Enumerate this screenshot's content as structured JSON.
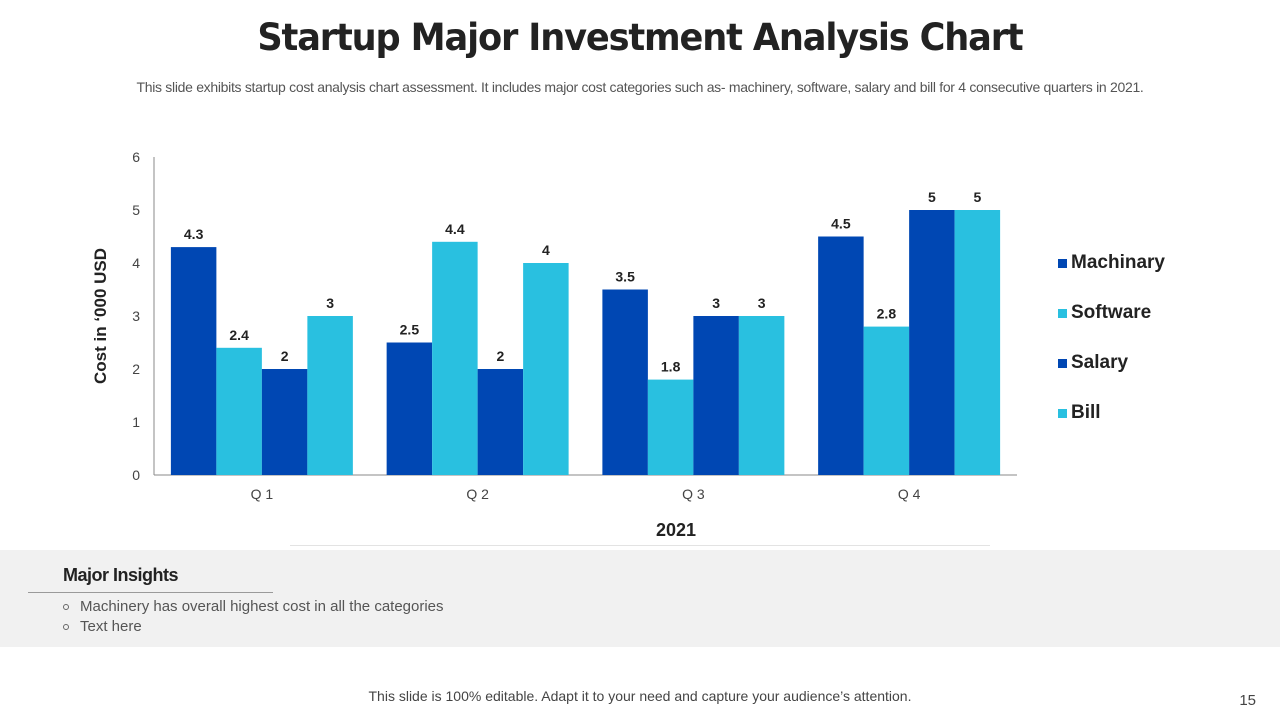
{
  "page": {
    "title": "Startup Major Investment Analysis Chart",
    "subtitle": "This slide exhibits startup cost analysis chart assessment. It includes major cost categories such as- machinery, software, salary and bill for 4 consecutive quarters in 2021.",
    "footer": "This slide is 100% editable. Adapt it to your need and capture your audience’s attention.",
    "page_number": "15"
  },
  "insights": {
    "title": "Major Insights",
    "items": [
      "Machinery has overall highest cost in all the categories",
      "Text here"
    ]
  },
  "chart_data": {
    "type": "bar",
    "title": "",
    "xlabel": "2021",
    "ylabel": "Cost in ‘000 USD",
    "categories": [
      "Q 1",
      "Q 2",
      "Q 3",
      "Q 4"
    ],
    "ylim": [
      0,
      6
    ],
    "yticks": [
      0,
      1,
      2,
      3,
      4,
      5,
      6
    ],
    "grid": false,
    "legend_position": "right",
    "data_labels": true,
    "series": [
      {
        "name": "Machinary",
        "color": "#0047b3",
        "values": [
          4.3,
          2.5,
          3.5,
          4.5
        ]
      },
      {
        "name": "Software",
        "color": "#29c0e0",
        "values": [
          2.4,
          4.4,
          1.8,
          2.8
        ]
      },
      {
        "name": "Salary",
        "color": "#0047b3",
        "values": [
          2,
          2,
          3,
          5
        ]
      },
      {
        "name": "Bill",
        "color": "#29c0e0",
        "values": [
          3,
          4,
          3,
          5
        ]
      }
    ]
  }
}
